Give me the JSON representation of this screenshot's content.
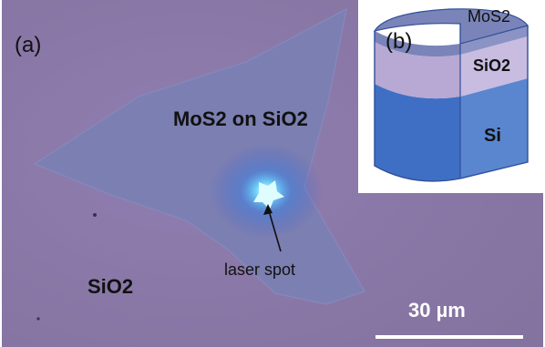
{
  "panel_a": {
    "label": "(a)",
    "flake_label": "MoS2 on SiO2",
    "substrate_label": "SiO2",
    "spot_label": "laser spot",
    "scale_bar_label": "30 µm",
    "colors": {
      "substrate": "#8a78ab",
      "flake": "#7b7fb0",
      "laser": "#4fb8ff",
      "scale_bar": "#ffffff"
    }
  },
  "panel_b": {
    "label": "(b)",
    "layers": [
      {
        "name": "MoS2",
        "color": "#7a84b8"
      },
      {
        "name": "SiO2",
        "color": "#b8a8d4"
      },
      {
        "name": "Si",
        "color": "#3f6fc4"
      }
    ]
  }
}
